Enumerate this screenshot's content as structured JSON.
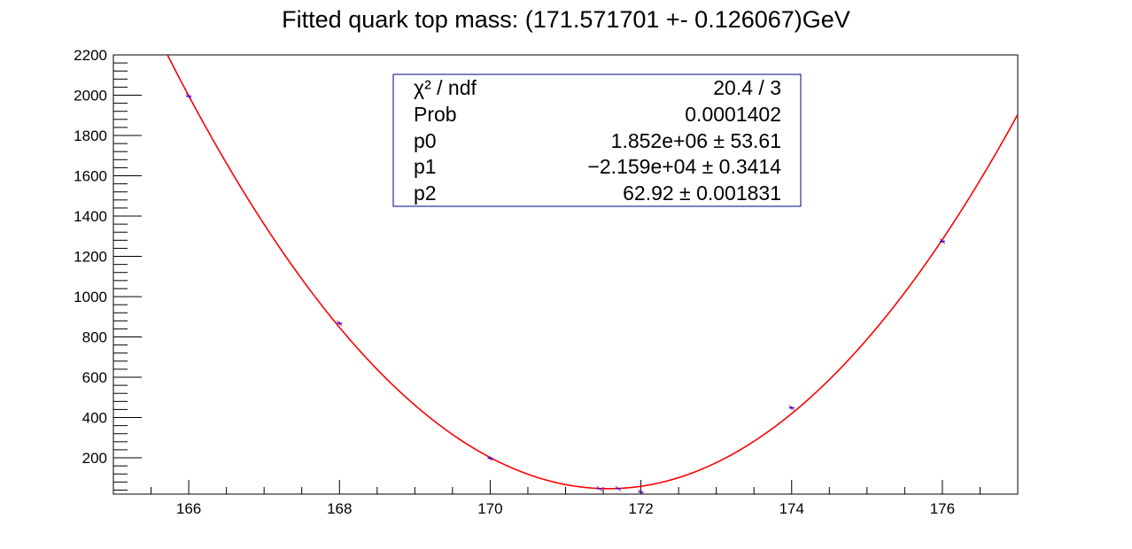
{
  "chart_data": {
    "type": "scatter",
    "title": "Fitted quark top mass: (171.571701 +- 0.126067)GeV",
    "xlabel": "",
    "ylabel": "",
    "xlim": [
      165,
      177
    ],
    "ylim": [
      20,
      2200
    ],
    "x_ticks": [
      "166",
      "168",
      "170",
      "172",
      "174",
      "176"
    ],
    "y_ticks": [
      "200",
      "400",
      "600",
      "800",
      "1000",
      "1200",
      "1400",
      "1600",
      "1800",
      "2000",
      "2200"
    ],
    "grid": false,
    "series": [
      {
        "kind": "points",
        "x": [
          166,
          168,
          170,
          171.45,
          171.7,
          172,
          174,
          176
        ],
        "y": [
          1995,
          868,
          198,
          47,
          47,
          30,
          448,
          1275
        ],
        "yerr": [
          8,
          8,
          8,
          4,
          4,
          4,
          8,
          8
        ],
        "color": "#0000ff"
      },
      {
        "kind": "fit",
        "function": "pol2",
        "coefficients": [
          1852000,
          -21590,
          62.92
        ],
        "color": "#ff0000"
      }
    ],
    "stats_box": {
      "rows": [
        {
          "label": "χ² / ndf",
          "value": "20.4 / 3"
        },
        {
          "label": "Prob",
          "value": "0.0001402"
        },
        {
          "label": "p0",
          "value": "1.852e+06 ± 53.61"
        },
        {
          "label": "p1",
          "value": "−2.159e+04 ± 0.3414"
        },
        {
          "label": "p2",
          "value": "62.92 ± 0.001831"
        }
      ]
    }
  }
}
